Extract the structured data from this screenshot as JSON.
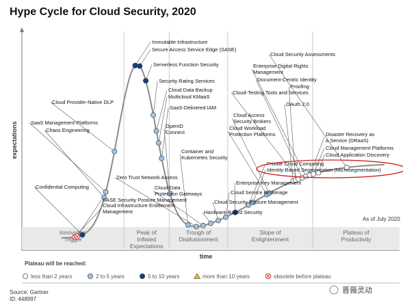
{
  "chart_data": {
    "type": "scatter",
    "title": "Hype Cycle for Cloud Security, 2020",
    "xlabel": "time",
    "ylabel": "expectations",
    "as_of": "As of July 2020",
    "phases": [
      {
        "line1": "Innovation",
        "line2": "Trigger",
        "line3": ""
      },
      {
        "line1": "Peak of",
        "line2": "Inflated",
        "line3": "Expectations"
      },
      {
        "line1": "Trough of",
        "line2": "Disillusionment",
        "line3": ""
      },
      {
        "line1": "Slope of",
        "line2": "Enlightenment",
        "line3": ""
      },
      {
        "line1": "Plateau of",
        "line2": "Productivity",
        "line3": ""
      }
    ],
    "legend": {
      "title": "Plateau will be reached:",
      "entries": [
        {
          "category": "lt2",
          "label": "less than 2 years"
        },
        {
          "category": "2to5",
          "label": "2 to 5 years"
        },
        {
          "category": "5to10",
          "label": "5 to 10 years"
        },
        {
          "category": "gt10",
          "label": "more than 10 years"
        },
        {
          "category": "obsolete",
          "label": "obsolete before plateau"
        }
      ]
    },
    "colors": {
      "lt2": "#ffffff",
      "2to5": "#9ec3e6",
      "5to10": "#1f3b73",
      "gt10": "#f0b429",
      "obsolete": "#d23b3b",
      "curve": "#8a8a8a",
      "highlight": "#d11f1f"
    },
    "points": [
      {
        "label": "Cloud Infrastructure Entitlement Management",
        "category": "obsolete",
        "t": 0.14
      },
      {
        "label": "SASE Security Posture Management",
        "category": "obsolete",
        "t": 0.146
      },
      {
        "label": "Confidential Computing",
        "category": "5to10",
        "t": 0.16
      },
      {
        "label": "Chaos Engineering",
        "category": "2to5",
        "t": 0.218
      },
      {
        "label": "SaaS Management Platforms",
        "category": "2to5",
        "t": 0.222
      },
      {
        "label": "Cloud Provider-Native DLP",
        "category": "2to5",
        "t": 0.245
      },
      {
        "label": "Immutable Infrastructure",
        "category": "5to10",
        "t": 0.3
      },
      {
        "label": "Secure Access Service Edge (SASE)",
        "category": "5to10",
        "t": 0.312
      },
      {
        "label": "Serverless Function Security",
        "category": "5to10",
        "t": 0.328
      },
      {
        "label": "Security Rating Services",
        "category": "2to5",
        "t": 0.348
      },
      {
        "label": "Cloud Data Backup",
        "category": "2to5",
        "t": 0.356
      },
      {
        "label": "Multicloud KMaaS",
        "category": "2to5",
        "t": 0.362
      },
      {
        "label": "SaaS-Delivered IAM",
        "category": "2to5",
        "t": 0.37
      },
      {
        "label": "OpenID Connect",
        "category": "2to5",
        "t": 0.392
      },
      {
        "label": "Container and Kubernetes Security",
        "category": "2to5",
        "t": 0.44
      },
      {
        "label": "Zero Trust Network Access",
        "category": "2to5",
        "t": 0.462
      },
      {
        "label": "Cloud Data Protection Gateways",
        "category": "2to5",
        "t": 0.48
      },
      {
        "label": "Hardware-Based Security",
        "category": "2to5",
        "t": 0.5
      },
      {
        "label": "Cloud Security Posture Management",
        "category": "2to5",
        "t": 0.52
      },
      {
        "label": "Cloud Service Brokerage",
        "category": "2to5",
        "t": 0.54
      },
      {
        "label": "Enterprise Key Management",
        "category": "5to10",
        "t": 0.565
      },
      {
        "label": "Private Cloud Computing",
        "category": "2to5",
        "t": 0.6
      },
      {
        "label": "Identity-Based Segmentation (Microsegmentation)",
        "category": "2to5",
        "t": 0.612
      },
      {
        "label": "Cloud Workload Protection Platforms",
        "category": "2to5",
        "t": 0.648
      },
      {
        "label": "Cloud Access Security Brokers",
        "category": "2to5",
        "t": 0.655
      },
      {
        "label": "OAuth 2.0",
        "category": "lt2",
        "t": 0.718
      },
      {
        "label": "Proofing",
        "category": "lt2",
        "t": 0.725
      },
      {
        "label": "Cloud-Testing Tools and Services",
        "category": "lt2",
        "t": 0.732
      },
      {
        "label": "Document-Centric Identity",
        "category": "lt2",
        "t": 0.742
      },
      {
        "label": "Enterprise Digital Rights Management",
        "category": "lt2",
        "t": 0.752
      },
      {
        "label": "Disaster Recovery as a Service (DRaaS)",
        "category": "lt2",
        "t": 0.762
      },
      {
        "label": "Cloud Management Platforms",
        "category": "lt2",
        "t": 0.772
      },
      {
        "label": "Cloud Application Discovery",
        "category": "lt2",
        "t": 0.785
      },
      {
        "label": "Cloud Security Assessments",
        "category": "lt2",
        "t": 0.86
      }
    ],
    "highlighted": "Identity-Based Segmentation (Microsegmentation)"
  },
  "footer": {
    "source": "Source: Gartner",
    "id": "ID: 448997",
    "watermark": "晋薇灵动"
  }
}
